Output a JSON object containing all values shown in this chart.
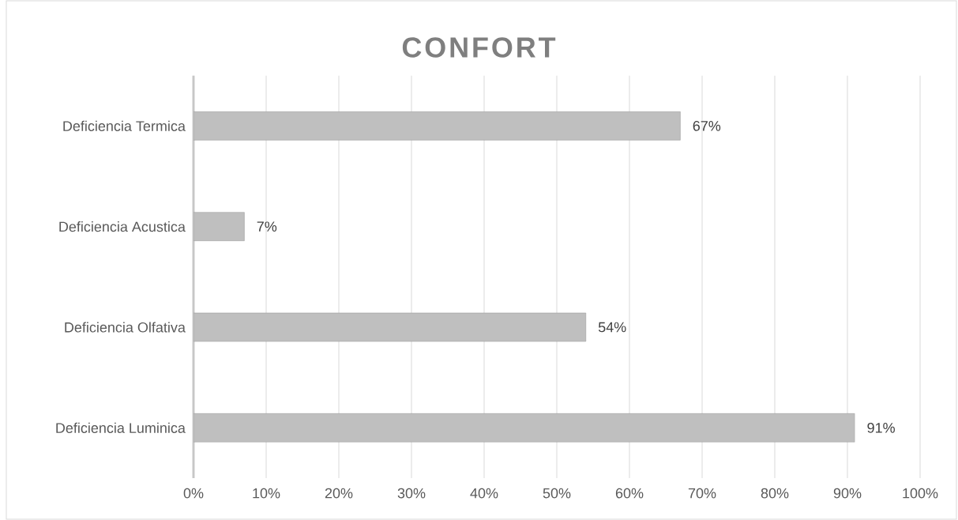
{
  "chart_data": {
    "type": "bar",
    "orientation": "horizontal",
    "title": "CONFORT",
    "categories": [
      "Deficiencia Termica",
      "Deficiencia Acustica",
      "Deficiencia Olfativa",
      "Deficiencia Luminica"
    ],
    "values": [
      67,
      7,
      54,
      91
    ],
    "value_labels": [
      "67%",
      "7%",
      "54%",
      "91%"
    ],
    "color": "#bfbfbf",
    "xlim": [
      0,
      100
    ],
    "xticks": [
      {
        "value": 0,
        "label": "0%"
      },
      {
        "value": 10,
        "label": "10%"
      },
      {
        "value": 20,
        "label": "20%"
      },
      {
        "value": 30,
        "label": "30%"
      },
      {
        "value": 40,
        "label": "40%"
      },
      {
        "value": 50,
        "label": "50%"
      },
      {
        "value": 60,
        "label": "60%"
      },
      {
        "value": 70,
        "label": "70%"
      },
      {
        "value": 80,
        "label": "80%"
      },
      {
        "value": 90,
        "label": "90%"
      },
      {
        "value": 100,
        "label": "100%"
      }
    ],
    "grid": "x"
  }
}
